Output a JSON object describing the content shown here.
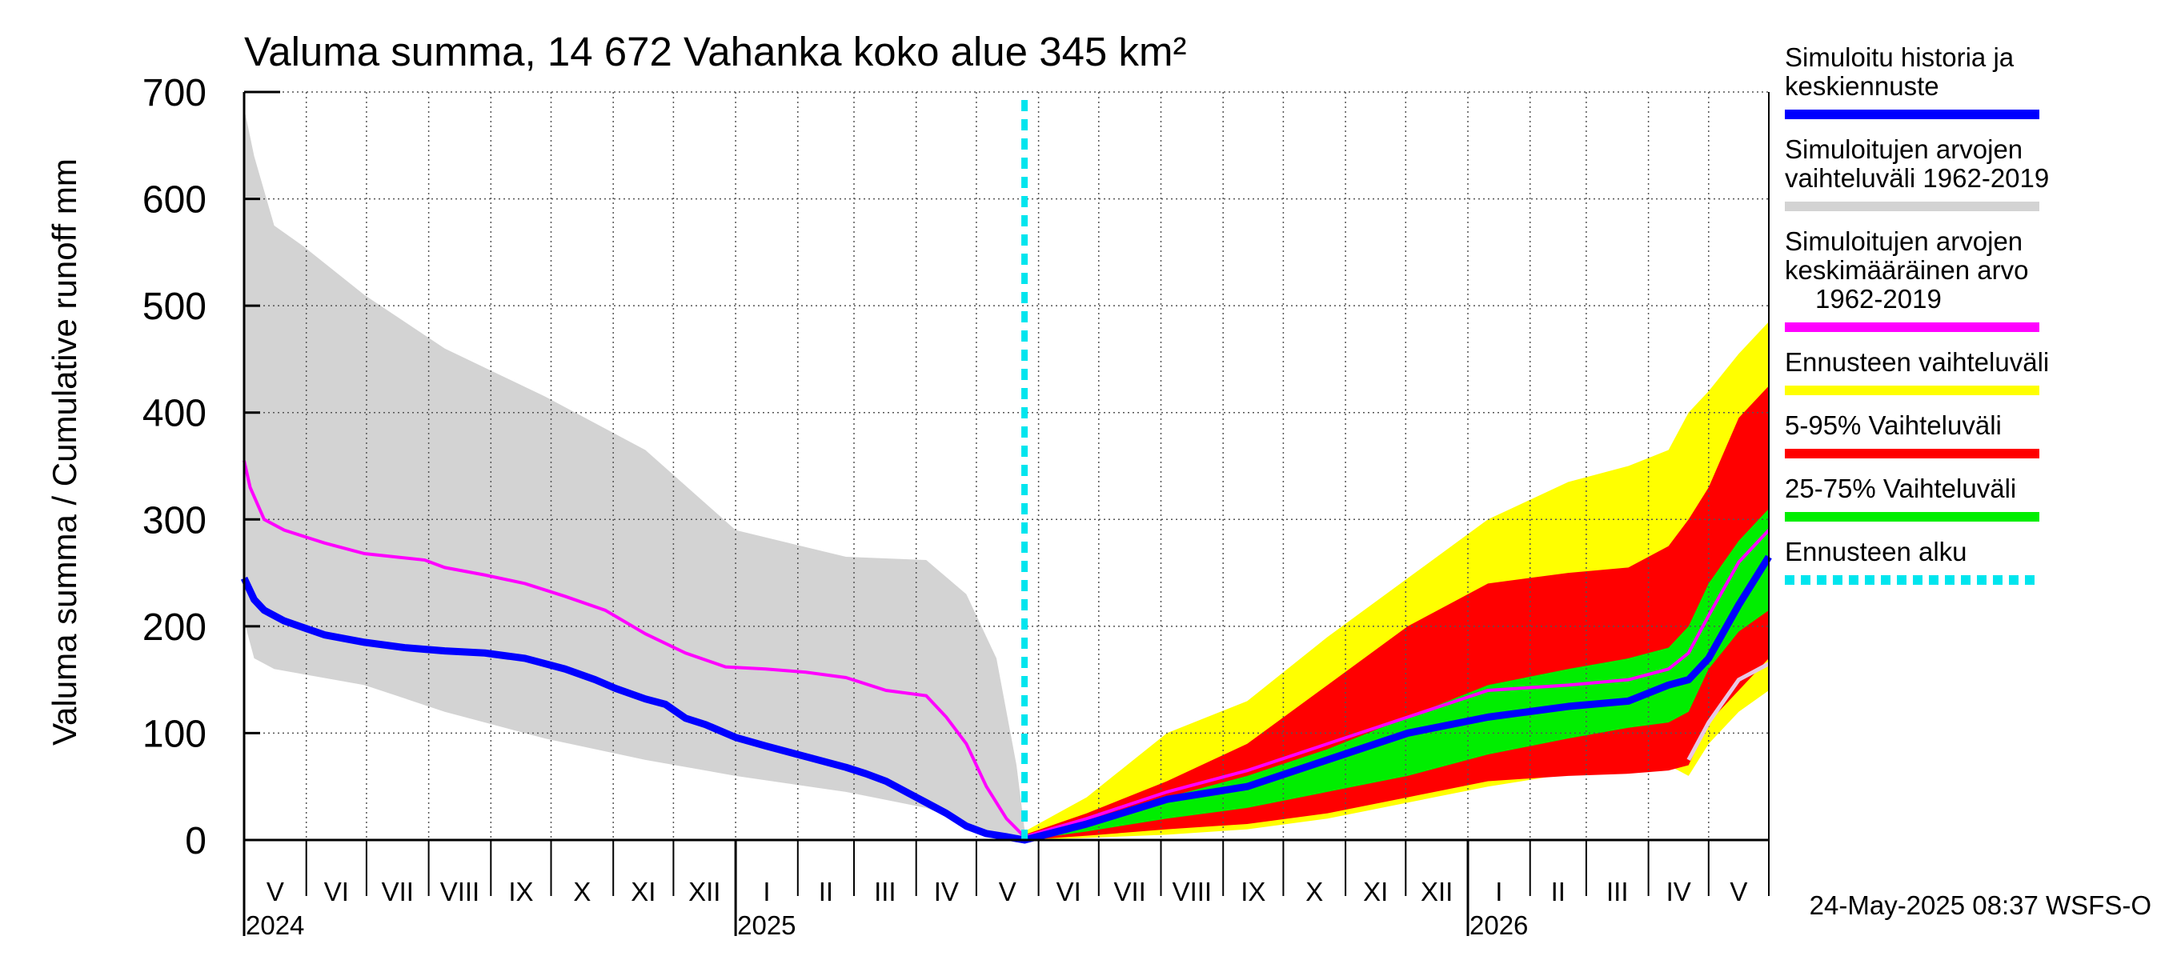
{
  "chart_data": {
    "type": "area",
    "title": "Valuma summa, 14 672 Vahanka koko alue 345 km²",
    "ylabel": "Valuma summa / Cumulative runoff    mm",
    "ylim": [
      0,
      700
    ],
    "yticks": [
      0,
      100,
      200,
      300,
      400,
      500,
      600,
      700
    ],
    "x_range_days": [
      0,
      760
    ],
    "x_start_date": "2024-05-01",
    "months": [
      {
        "label": "V",
        "start": 0
      },
      {
        "label": "VI",
        "start": 31
      },
      {
        "label": "VII",
        "start": 61
      },
      {
        "label": "VIII",
        "start": 92
      },
      {
        "label": "IX",
        "start": 123
      },
      {
        "label": "X",
        "start": 153
      },
      {
        "label": "XI",
        "start": 184
      },
      {
        "label": "XII",
        "start": 214
      },
      {
        "label": "I",
        "start": 245
      },
      {
        "label": "II",
        "start": 276
      },
      {
        "label": "III",
        "start": 304
      },
      {
        "label": "IV",
        "start": 335
      },
      {
        "label": "V",
        "start": 365
      },
      {
        "label": "VI",
        "start": 396
      },
      {
        "label": "VII",
        "start": 426
      },
      {
        "label": "VIII",
        "start": 457
      },
      {
        "label": "IX",
        "start": 488
      },
      {
        "label": "X",
        "start": 518
      },
      {
        "label": "XI",
        "start": 549
      },
      {
        "label": "XII",
        "start": 579
      },
      {
        "label": "I",
        "start": 610
      },
      {
        "label": "II",
        "start": 641
      },
      {
        "label": "III",
        "start": 669
      },
      {
        "label": "IV",
        "start": 700
      },
      {
        "label": "V",
        "start": 730
      }
    ],
    "years": [
      {
        "label": "2024",
        "start": 0
      },
      {
        "label": "2025",
        "start": 245
      },
      {
        "label": "2026",
        "start": 610
      }
    ],
    "forecast_start_day": 389,
    "series": [
      {
        "name": "hist_range_upper",
        "x": [
          0,
          5,
          15,
          30,
          60,
          100,
          150,
          200,
          245,
          300,
          340,
          360,
          375,
          385,
          389
        ],
        "values": [
          685,
          640,
          575,
          555,
          510,
          460,
          415,
          365,
          290,
          265,
          262,
          230,
          170,
          70,
          10
        ]
      },
      {
        "name": "hist_range_lower",
        "x": [
          0,
          5,
          15,
          30,
          60,
          100,
          150,
          200,
          245,
          300,
          340,
          360,
          375,
          385,
          389
        ],
        "values": [
          205,
          170,
          160,
          155,
          145,
          120,
          95,
          75,
          60,
          45,
          30,
          15,
          5,
          0,
          0
        ]
      },
      {
        "name": "fc_range_upper",
        "x": [
          389,
          420,
          460,
          500,
          540,
          580,
          620,
          660,
          690,
          710,
          720,
          730,
          745,
          760
        ],
        "values": [
          8,
          40,
          100,
          130,
          190,
          245,
          300,
          335,
          350,
          365,
          400,
          420,
          455,
          485
        ]
      },
      {
        "name": "fc_range_lower",
        "x": [
          389,
          420,
          460,
          500,
          540,
          580,
          620,
          660,
          690,
          710,
          720,
          730,
          745,
          760
        ],
        "values": [
          0,
          2,
          5,
          10,
          20,
          35,
          50,
          62,
          65,
          70,
          60,
          90,
          120,
          140
        ]
      },
      {
        "name": "p5_95_upper",
        "x": [
          389,
          420,
          460,
          500,
          540,
          580,
          620,
          660,
          690,
          710,
          720,
          730,
          745,
          760
        ],
        "values": [
          5,
          25,
          55,
          90,
          145,
          200,
          240,
          250,
          255,
          275,
          300,
          330,
          395,
          425
        ]
      },
      {
        "name": "p5_95_lower",
        "x": [
          389,
          420,
          460,
          500,
          540,
          580,
          620,
          660,
          690,
          710,
          720,
          730,
          745,
          760
        ],
        "values": [
          0,
          4,
          10,
          15,
          25,
          40,
          55,
          60,
          62,
          65,
          70,
          110,
          140,
          170
        ]
      },
      {
        "name": "p25_75_upper",
        "x": [
          389,
          420,
          460,
          500,
          540,
          580,
          620,
          660,
          690,
          710,
          720,
          730,
          745,
          760
        ],
        "values": [
          3,
          18,
          40,
          60,
          85,
          115,
          145,
          160,
          170,
          180,
          200,
          240,
          280,
          310
        ]
      },
      {
        "name": "p25_75_lower",
        "x": [
          389,
          420,
          460,
          500,
          540,
          580,
          620,
          660,
          690,
          710,
          720,
          730,
          745,
          760
        ],
        "values": [
          0,
          8,
          20,
          30,
          45,
          60,
          80,
          95,
          105,
          110,
          120,
          160,
          195,
          215
        ]
      },
      {
        "name": "Simuloitujen arvojen keskimääräinen arvo 1962-2019",
        "x": [
          0,
          3,
          10,
          20,
          40,
          60,
          90,
          100,
          120,
          140,
          160,
          180,
          200,
          220,
          240,
          260,
          280,
          300,
          320,
          340,
          350,
          360,
          370,
          380,
          389,
          420,
          460,
          500,
          540,
          580,
          620,
          660,
          690,
          710,
          720,
          730,
          745,
          760
        ],
        "values": [
          355,
          330,
          300,
          290,
          278,
          268,
          262,
          255,
          248,
          240,
          228,
          215,
          193,
          175,
          162,
          160,
          157,
          152,
          140,
          135,
          115,
          90,
          50,
          20,
          3,
          20,
          45,
          65,
          90,
          115,
          140,
          145,
          150,
          160,
          175,
          210,
          260,
          290
        ]
      },
      {
        "name": "Simuloitu historia ja keskiennuste",
        "x": [
          0,
          5,
          10,
          20,
          40,
          60,
          80,
          100,
          120,
          140,
          160,
          175,
          185,
          200,
          210,
          220,
          230,
          245,
          260,
          280,
          300,
          310,
          320,
          340,
          350,
          360,
          370,
          380,
          389,
          420,
          460,
          500,
          540,
          580,
          620,
          660,
          690,
          710,
          720,
          730,
          745,
          760
        ],
        "values": [
          245,
          225,
          215,
          205,
          192,
          185,
          180,
          177,
          175,
          170,
          160,
          150,
          142,
          132,
          127,
          114,
          108,
          96,
          88,
          78,
          68,
          62,
          55,
          35,
          25,
          13,
          6,
          3,
          0,
          15,
          38,
          50,
          75,
          100,
          115,
          125,
          130,
          145,
          150,
          170,
          220,
          265
        ]
      },
      {
        "name": "Ennusteen alku",
        "x": [
          389,
          389
        ],
        "values": [
          0,
          700
        ]
      }
    ],
    "extra_line": {
      "name": "light_trace",
      "x": [
        720,
        730,
        745,
        760
      ],
      "values": [
        75,
        110,
        150,
        165
      ]
    },
    "legend": [
      {
        "label": "Simuloitu historia ja keskiennuste",
        "color": "#0000ff",
        "style": "solid"
      },
      {
        "label": "Simuloitujen arvojen vaihteluväli 1962-2019",
        "color": "#d3d3d3",
        "style": "solid"
      },
      {
        "label": "Simuloitujen arvojen keskimääräinen arvo 1962-2019",
        "color": "#ff00ff",
        "style": "solid"
      },
      {
        "label": "Ennusteen vaihteluväli",
        "color": "#ffff00",
        "style": "solid"
      },
      {
        "label": "5-95% Vaihteluväli",
        "color": "#ff0000",
        "style": "solid"
      },
      {
        "label": "25-75% Vaihteluväli",
        "color": "#00ee00",
        "style": "solid"
      },
      {
        "label": "Ennusteen alku",
        "color": "#00e5ee",
        "style": "dashed"
      }
    ]
  },
  "legend_lines": [
    [
      "Simuloitu historia ja",
      "keskiennuste"
    ],
    [
      "Simuloitujen arvojen",
      "vaihteluväli 1962-2019"
    ],
    [
      "Simuloitujen arvojen",
      "keskimääräinen arvo",
      "1962-2019"
    ],
    [
      "Ennusteen vaihteluväli"
    ],
    [
      "5-95% Vaihteluväli"
    ],
    [
      "25-75% Vaihteluväli"
    ],
    [
      "Ennusteen alku"
    ]
  ],
  "footer": "24-May-2025 08:37 WSFS-O",
  "colors": {
    "hist_range": "#d3d3d3",
    "fc_range": "#ffff00",
    "p5_95": "#ff0000",
    "p25_75": "#00ee00",
    "mean": "#ff00ff",
    "median": "#0000ff",
    "forecast_start": "#00e5ee",
    "light_trace": "#e6c8e6"
  }
}
